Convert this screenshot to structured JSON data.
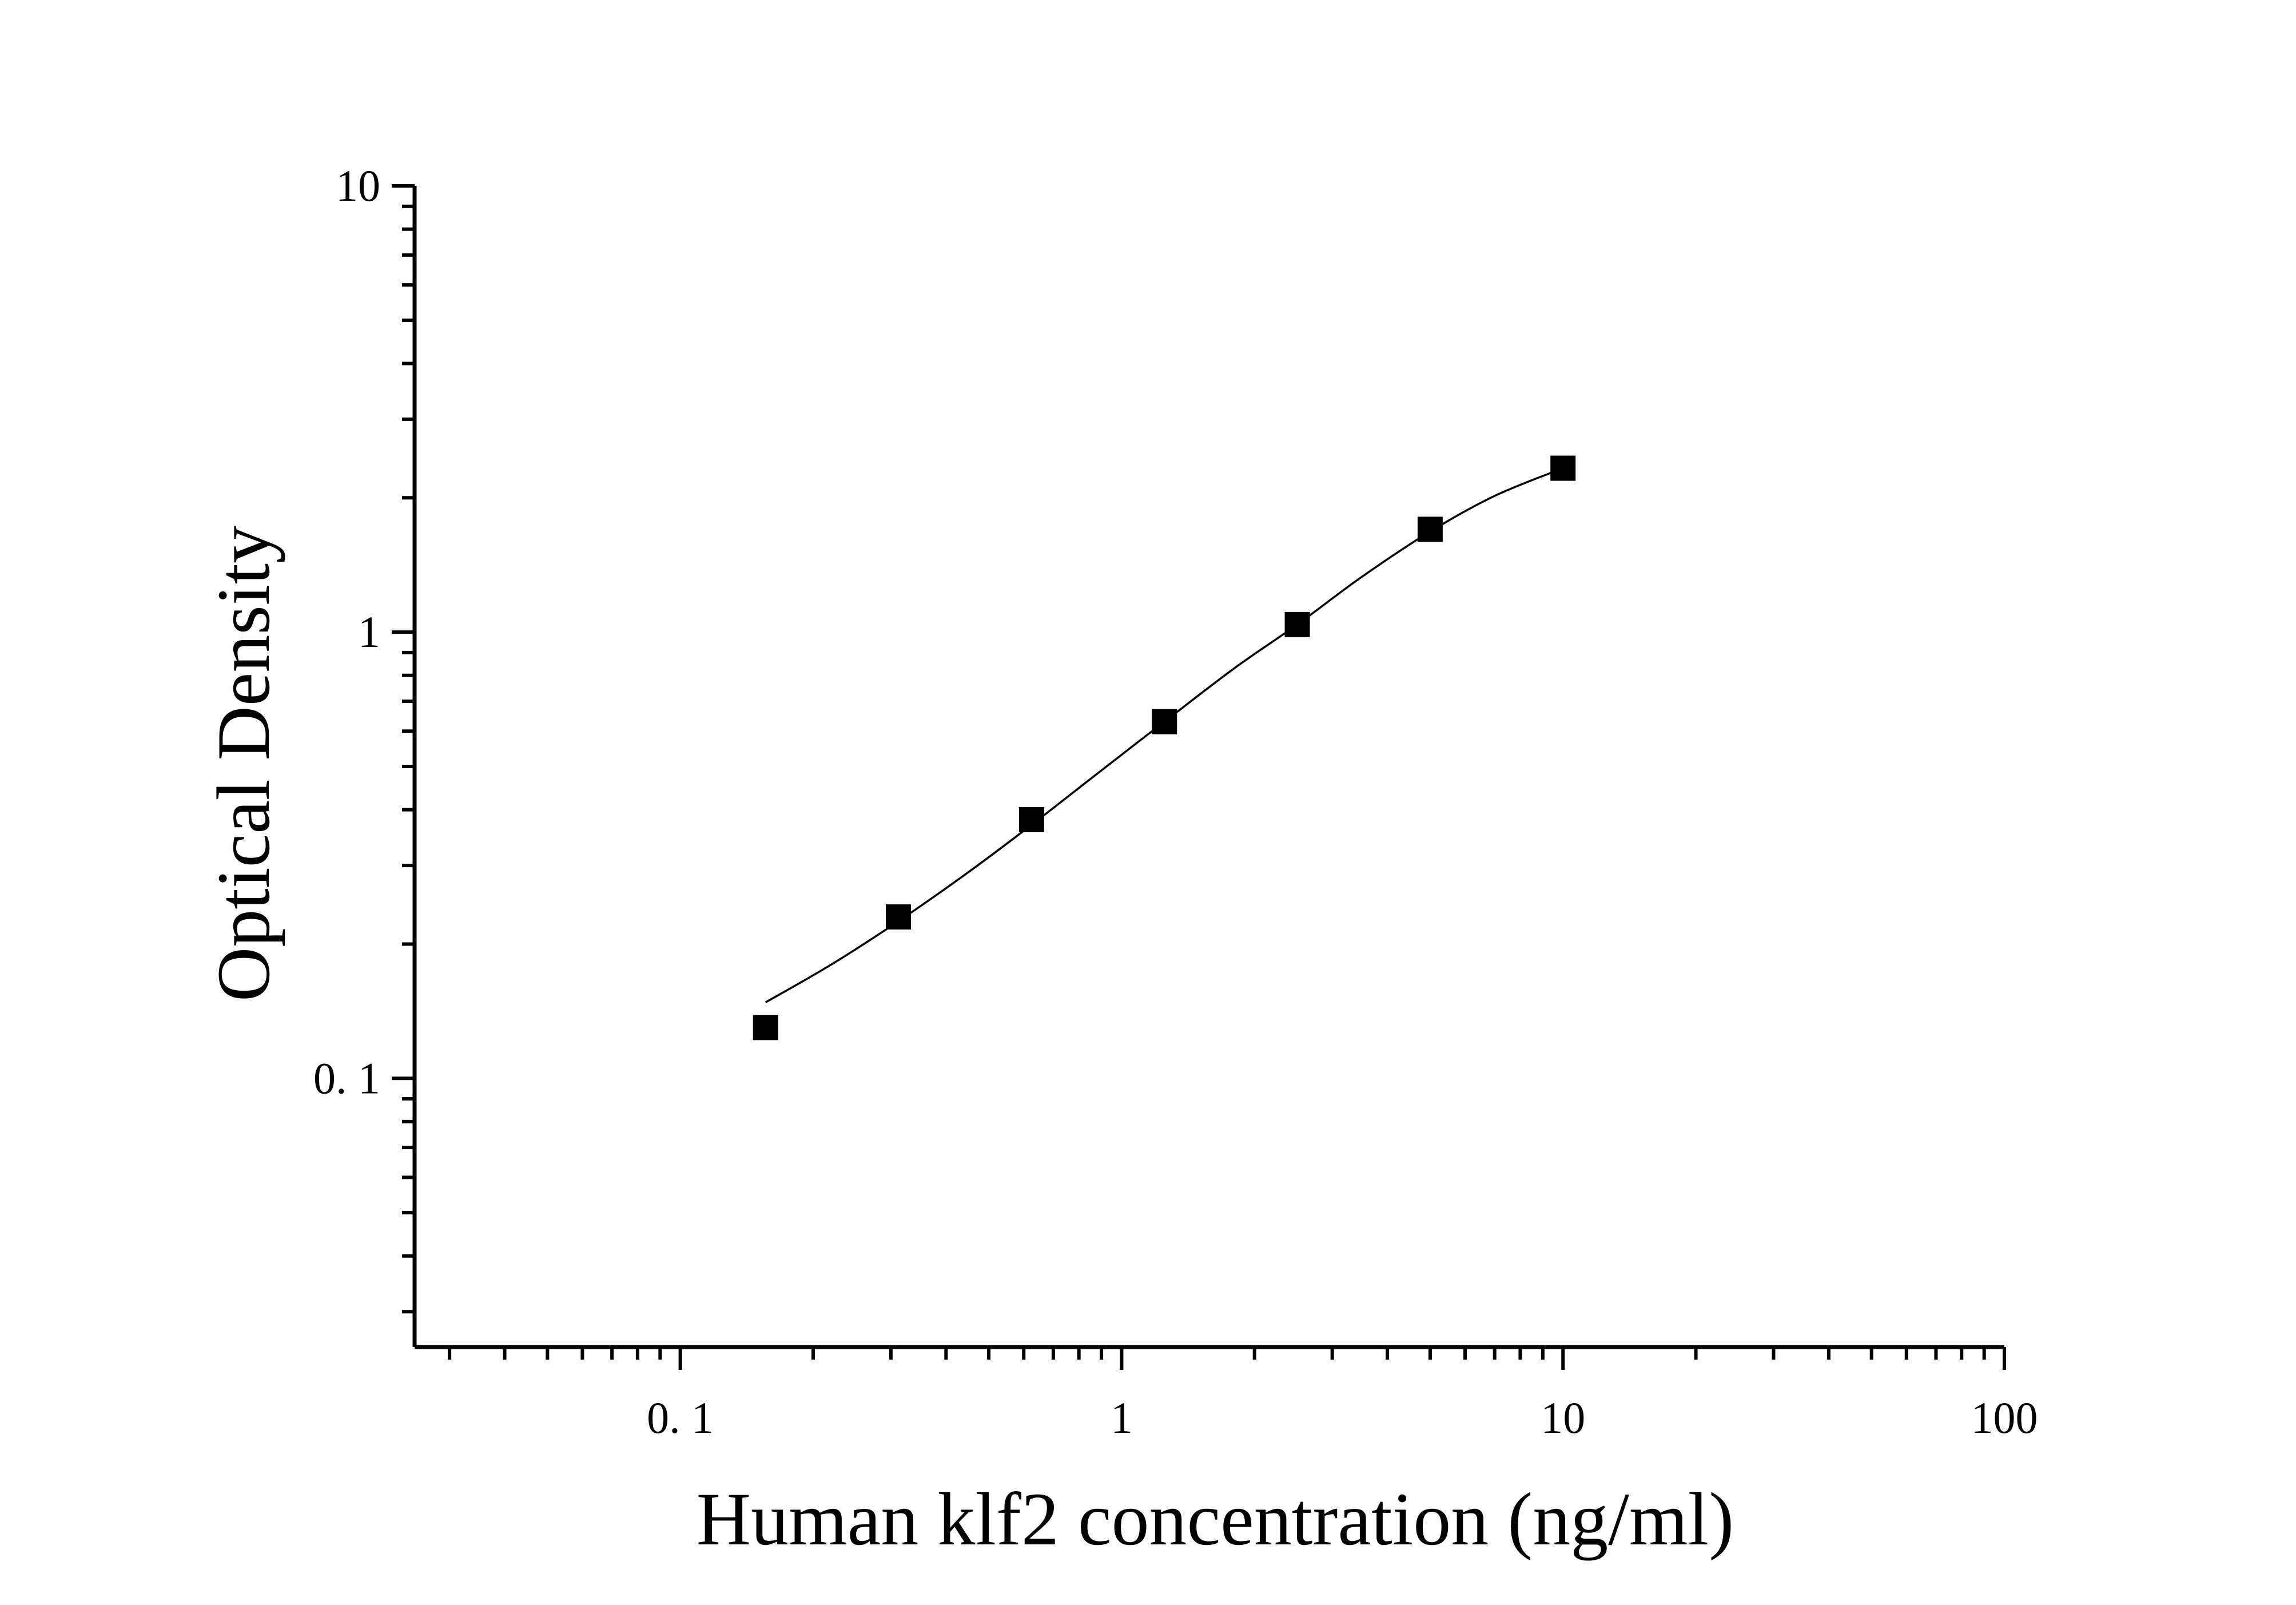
{
  "chart_data": {
    "type": "scatter",
    "title": "",
    "xlabel": "Human klf2 concentration (ng/ml)",
    "ylabel": "Optical Density",
    "x_scale": "log",
    "y_scale": "log",
    "xlim": [
      0.025,
      100
    ],
    "ylim": [
      0.025,
      10
    ],
    "x_ticks": [
      {
        "value": 0.1,
        "label": "0. 1"
      },
      {
        "value": 1,
        "label": "1"
      },
      {
        "value": 10,
        "label": "10"
      },
      {
        "value": 100,
        "label": "100"
      }
    ],
    "y_ticks": [
      {
        "value": 0.1,
        "label": "0. 1"
      },
      {
        "value": 1,
        "label": "1"
      },
      {
        "value": 10,
        "label": "10"
      }
    ],
    "grid": false,
    "legend": "none",
    "series": [
      {
        "marker": "square",
        "color": "#000000",
        "points": [
          {
            "x": 0.156,
            "y": 0.13
          },
          {
            "x": 0.312,
            "y": 0.23
          },
          {
            "x": 0.625,
            "y": 0.38
          },
          {
            "x": 1.25,
            "y": 0.63
          },
          {
            "x": 2.5,
            "y": 1.04
          },
          {
            "x": 5,
            "y": 1.7
          },
          {
            "x": 10,
            "y": 2.33
          }
        ]
      }
    ],
    "fit_curve": {
      "color": "#000000",
      "points": [
        {
          "x": 0.156,
          "y": 0.148
        },
        {
          "x": 0.22,
          "y": 0.18
        },
        {
          "x": 0.312,
          "y": 0.225
        },
        {
          "x": 0.45,
          "y": 0.29
        },
        {
          "x": 0.625,
          "y": 0.37
        },
        {
          "x": 0.9,
          "y": 0.49
        },
        {
          "x": 1.25,
          "y": 0.63
        },
        {
          "x": 1.8,
          "y": 0.83
        },
        {
          "x": 2.5,
          "y": 1.04
        },
        {
          "x": 3.5,
          "y": 1.33
        },
        {
          "x": 5,
          "y": 1.68
        },
        {
          "x": 7,
          "y": 2.02
        },
        {
          "x": 10,
          "y": 2.33
        }
      ]
    }
  }
}
